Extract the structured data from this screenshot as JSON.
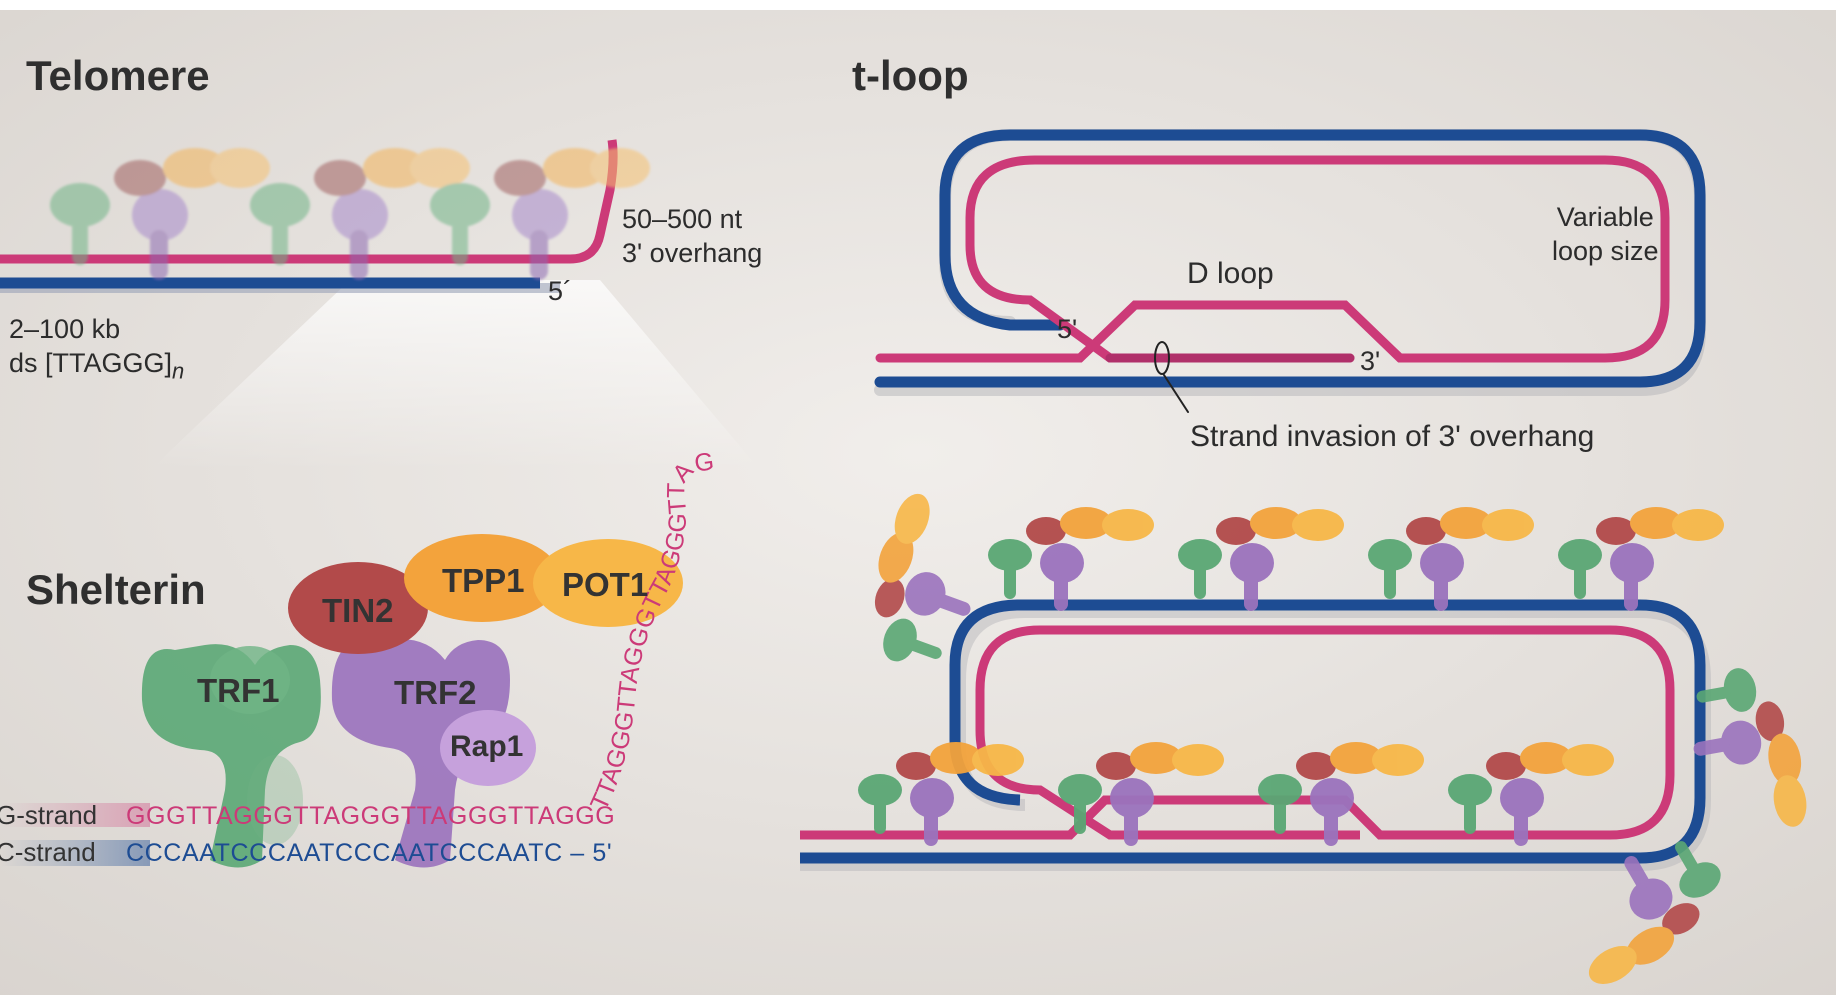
{
  "colors": {
    "g_strand": "#cc3a78",
    "c_strand": "#1d4c93",
    "trf1": "#5aa774",
    "trf2": "#9b73bd",
    "rap1": "#c6a1dc",
    "tin2": "#b24a4a",
    "tpp1": "#f3a33c",
    "pot1": "#f7b748",
    "background": "#e8e4e0"
  },
  "telomere": {
    "title": "Telomere",
    "overhang_line1": "50–500 nt",
    "overhang_line2": "3' overhang",
    "five_prime": "5´",
    "length_line1": "2–100 kb",
    "length_line2_prefix": "ds [TTAGGG]",
    "length_line2_subscript": "n"
  },
  "tloop": {
    "title": "t-loop",
    "variable_line1": "Variable",
    "variable_line2": "loop size",
    "dloop_label": "D loop",
    "five_prime": "5'",
    "three_prime": "3'",
    "invasion_label": "Strand invasion of 3' overhang"
  },
  "shelterin": {
    "title": "Shelterin",
    "proteins": {
      "trf1": "TRF1",
      "trf2": "TRF2",
      "rap1": "Rap1",
      "tin2": "TIN2",
      "tpp1": "TPP1",
      "pot1": "POT1"
    },
    "g_strand_label": "G-strand",
    "c_strand_label": "C-strand",
    "g_sequence": "GGGTTAGGGTTAGGGTTAGGGTTAGGG",
    "c_sequence": "CCCAATCCCAATCCCAATCCCAATC – 5'",
    "overhang_sequence": "TTAGGGTTAGGGTTAGGGTTAGGG...3'"
  }
}
